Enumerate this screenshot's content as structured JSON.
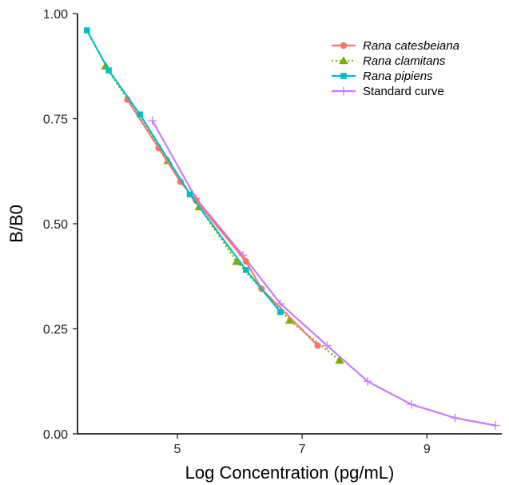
{
  "chart_data": {
    "type": "line",
    "xlabel": "Log Concentration (pg/mL)",
    "ylabel": "B/B0",
    "xlim": [
      3.4,
      10.2
    ],
    "ylim": [
      0,
      1.0
    ],
    "x_ticks": [
      5,
      7,
      9
    ],
    "x_tick_labels": [
      "5",
      "7",
      "9"
    ],
    "y_ticks": [
      0,
      0.25,
      0.5,
      0.75,
      1.0
    ],
    "y_tick_labels": [
      "0.00",
      "0.25",
      "0.50",
      "0.75",
      "1.00"
    ],
    "grid": false,
    "legend_position": "top-right",
    "series": [
      {
        "name": "Rana catesbeiana",
        "italic": true,
        "color": "#F8766D",
        "marker": "circle",
        "line": "solid",
        "points": [
          [
            4.2,
            0.795
          ],
          [
            4.7,
            0.68
          ],
          [
            5.05,
            0.6
          ],
          [
            5.3,
            0.555
          ],
          [
            6.1,
            0.41
          ],
          [
            6.35,
            0.345
          ],
          [
            7.25,
            0.21
          ]
        ]
      },
      {
        "name": "Rana clamitans",
        "italic": true,
        "color": "#7CAE00",
        "marker": "triangle",
        "line": "dotted",
        "points": [
          [
            3.85,
            0.875
          ],
          [
            4.85,
            0.65
          ],
          [
            5.35,
            0.54
          ],
          [
            5.95,
            0.41
          ],
          [
            6.8,
            0.27
          ],
          [
            7.6,
            0.175
          ]
        ]
      },
      {
        "name": "Rana pipiens",
        "italic": true,
        "color": "#00BFC4",
        "marker": "square",
        "line": "solid",
        "points": [
          [
            3.55,
            0.96
          ],
          [
            3.9,
            0.865
          ],
          [
            4.4,
            0.76
          ],
          [
            5.2,
            0.57
          ],
          [
            6.1,
            0.39
          ],
          [
            6.65,
            0.29
          ]
        ]
      },
      {
        "name": "Standard curve",
        "italic": false,
        "color": "#C77CFF",
        "marker": "cross",
        "line": "solid",
        "points": [
          [
            4.6,
            0.745
          ],
          [
            5.3,
            0.56
          ],
          [
            6.05,
            0.425
          ],
          [
            6.65,
            0.31
          ],
          [
            7.4,
            0.21
          ],
          [
            8.05,
            0.125
          ],
          [
            8.75,
            0.07
          ],
          [
            9.45,
            0.038
          ],
          [
            10.1,
            0.02
          ]
        ]
      }
    ]
  }
}
